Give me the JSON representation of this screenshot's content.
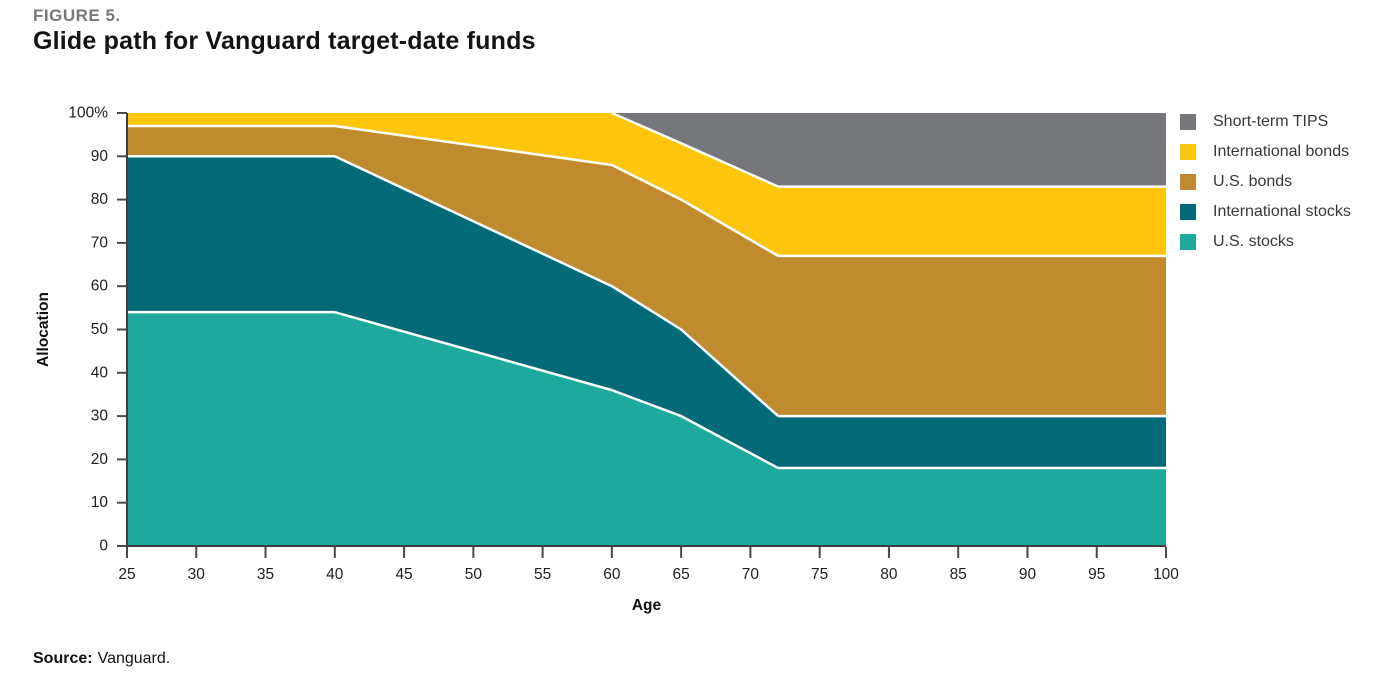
{
  "header": {
    "figure_label": "FIGURE 5.",
    "title": "Glide path for Vanguard target-date funds"
  },
  "footer": {
    "source_label": "Source:",
    "source_text": "Vanguard."
  },
  "legend": {
    "items": [
      {
        "label": "Short-term TIPS",
        "color": "#76777A"
      },
      {
        "label": "International bonds",
        "color": "#FDC60D"
      },
      {
        "label": "U.S. bonds",
        "color": "#BF8B2E"
      },
      {
        "label": "International stocks",
        "color": "#056A77"
      },
      {
        "label": "U.S. stocks",
        "color": "#1FA89C"
      }
    ]
  },
  "chart_data": {
    "type": "area",
    "stacked": true,
    "title": "Glide path for Vanguard target-date funds",
    "xlabel": "Age",
    "ylabel": "Allocation",
    "xlim": [
      25,
      100
    ],
    "ylim": [
      0,
      100
    ],
    "x_ticks": [
      25,
      30,
      35,
      40,
      45,
      50,
      55,
      60,
      65,
      70,
      75,
      80,
      85,
      90,
      95,
      100
    ],
    "y_ticks": [
      0,
      10,
      20,
      30,
      40,
      50,
      60,
      70,
      80,
      90,
      100
    ],
    "y_top_tick_label": "100%",
    "grid": false,
    "legend_position": "top-right",
    "separator_color": "#FFFFFF",
    "x": [
      25,
      40,
      60,
      65,
      72,
      100
    ],
    "series": [
      {
        "name": "U.S. stocks",
        "color": "#1FA89C",
        "values": [
          54,
          54,
          36,
          30,
          18,
          18
        ]
      },
      {
        "name": "International stocks",
        "color": "#056A77",
        "values": [
          36,
          36,
          24,
          20,
          12,
          12
        ]
      },
      {
        "name": "U.S. bonds",
        "color": "#BF8B2E",
        "values": [
          7,
          7,
          28,
          30,
          37,
          37
        ]
      },
      {
        "name": "International bonds",
        "color": "#FDC60D",
        "values": [
          3,
          3,
          12,
          13,
          16,
          16
        ]
      },
      {
        "name": "Short-term TIPS",
        "color": "#76777A",
        "values": [
          0,
          0,
          0,
          7,
          17,
          17
        ]
      }
    ]
  }
}
